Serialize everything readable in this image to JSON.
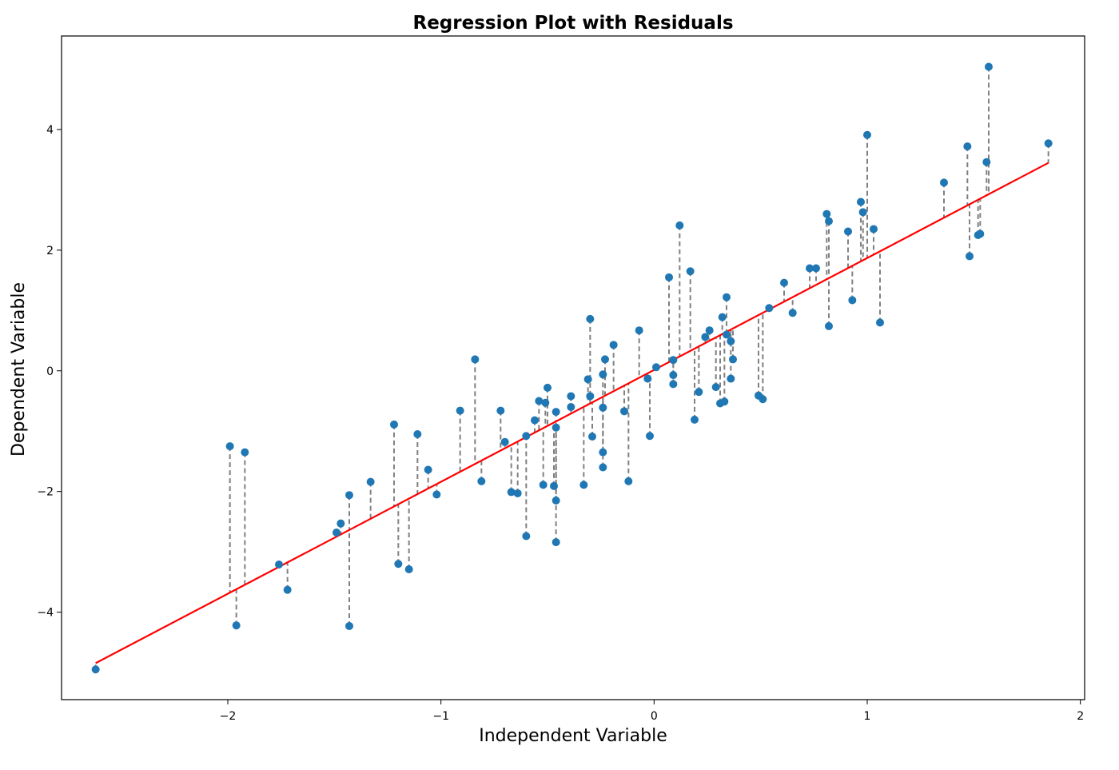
{
  "chart_data": {
    "type": "scatter",
    "title": "Regression Plot with Residuals",
    "xlabel": "Independent Variable",
    "ylabel": "Dependent Variable",
    "xlim": [
      -2.78,
      2.02
    ],
    "ylim": [
      -5.45,
      5.55
    ],
    "xticks": [
      -2,
      -1,
      0,
      1,
      2
    ],
    "yticks": [
      -4,
      -2,
      0,
      2,
      4
    ],
    "tick_labels_x": [
      "−2",
      "−1",
      "0",
      "1",
      "2"
    ],
    "tick_labels_y": [
      "−4",
      "−2",
      "0",
      "2",
      "4"
    ],
    "grid": false,
    "regression_line": {
      "color": "#ff0000",
      "slope": 1.855,
      "intercept": 0.015,
      "x_range": [
        -2.62,
        1.85
      ]
    },
    "residual_style": {
      "color": "#808080",
      "dash": "dashed"
    },
    "point_color": "#1f77b4",
    "points": [
      {
        "x": -2.62,
        "y": -4.95
      },
      {
        "x": -1.99,
        "y": -1.25
      },
      {
        "x": -1.96,
        "y": -4.22
      },
      {
        "x": -1.92,
        "y": -1.35
      },
      {
        "x": -1.76,
        "y": -3.21
      },
      {
        "x": -1.72,
        "y": -3.63
      },
      {
        "x": -1.49,
        "y": -2.68
      },
      {
        "x": -1.47,
        "y": -2.53
      },
      {
        "x": -1.43,
        "y": -2.06
      },
      {
        "x": -1.43,
        "y": -4.23
      },
      {
        "x": -1.33,
        "y": -1.84
      },
      {
        "x": -1.22,
        "y": -0.89
      },
      {
        "x": -1.2,
        "y": -3.2
      },
      {
        "x": -1.15,
        "y": -3.29
      },
      {
        "x": -1.11,
        "y": -1.05
      },
      {
        "x": -1.06,
        "y": -1.64
      },
      {
        "x": -1.02,
        "y": -2.05
      },
      {
        "x": -0.91,
        "y": -0.66
      },
      {
        "x": -0.84,
        "y": 0.19
      },
      {
        "x": -0.81,
        "y": -1.83
      },
      {
        "x": -0.72,
        "y": -0.66
      },
      {
        "x": -0.7,
        "y": -1.18
      },
      {
        "x": -0.67,
        "y": -2.01
      },
      {
        "x": -0.64,
        "y": -2.03
      },
      {
        "x": -0.6,
        "y": -2.74
      },
      {
        "x": -0.6,
        "y": -1.08
      },
      {
        "x": -0.56,
        "y": -0.82
      },
      {
        "x": -0.54,
        "y": -0.5
      },
      {
        "x": -0.52,
        "y": -1.89
      },
      {
        "x": -0.51,
        "y": -0.53
      },
      {
        "x": -0.5,
        "y": -0.28
      },
      {
        "x": -0.47,
        "y": -1.91
      },
      {
        "x": -0.46,
        "y": -0.68
      },
      {
        "x": -0.46,
        "y": -0.94
      },
      {
        "x": -0.46,
        "y": -2.15
      },
      {
        "x": -0.46,
        "y": -2.84
      },
      {
        "x": -0.39,
        "y": -0.42
      },
      {
        "x": -0.39,
        "y": -0.6
      },
      {
        "x": -0.33,
        "y": -1.89
      },
      {
        "x": -0.31,
        "y": -0.14
      },
      {
        "x": -0.3,
        "y": -0.42
      },
      {
        "x": -0.3,
        "y": 0.86
      },
      {
        "x": -0.29,
        "y": -1.09
      },
      {
        "x": -0.24,
        "y": -0.06
      },
      {
        "x": -0.24,
        "y": -0.61
      },
      {
        "x": -0.24,
        "y": -1.35
      },
      {
        "x": -0.24,
        "y": -1.6
      },
      {
        "x": -0.23,
        "y": 0.19
      },
      {
        "x": -0.19,
        "y": 0.43
      },
      {
        "x": -0.14,
        "y": -0.67
      },
      {
        "x": -0.12,
        "y": -1.83
      },
      {
        "x": -0.07,
        "y": 0.67
      },
      {
        "x": -0.03,
        "y": -0.13
      },
      {
        "x": -0.02,
        "y": -1.08
      },
      {
        "x": 0.01,
        "y": 0.06
      },
      {
        "x": 0.07,
        "y": 1.55
      },
      {
        "x": 0.09,
        "y": 0.18
      },
      {
        "x": 0.09,
        "y": -0.07
      },
      {
        "x": 0.09,
        "y": -0.22
      },
      {
        "x": 0.12,
        "y": 2.41
      },
      {
        "x": 0.17,
        "y": 1.65
      },
      {
        "x": 0.19,
        "y": -0.81
      },
      {
        "x": 0.21,
        "y": -0.35
      },
      {
        "x": 0.24,
        "y": 0.56
      },
      {
        "x": 0.26,
        "y": 0.67
      },
      {
        "x": 0.29,
        "y": -0.27
      },
      {
        "x": 0.31,
        "y": -0.54
      },
      {
        "x": 0.32,
        "y": 0.89
      },
      {
        "x": 0.33,
        "y": -0.51
      },
      {
        "x": 0.34,
        "y": 1.22
      },
      {
        "x": 0.34,
        "y": 0.6
      },
      {
        "x": 0.36,
        "y": 0.49
      },
      {
        "x": 0.36,
        "y": -0.13
      },
      {
        "x": 0.37,
        "y": 0.19
      },
      {
        "x": 0.49,
        "y": -0.41
      },
      {
        "x": 0.51,
        "y": -0.47
      },
      {
        "x": 0.54,
        "y": 1.04
      },
      {
        "x": 0.61,
        "y": 1.46
      },
      {
        "x": 0.65,
        "y": 0.96
      },
      {
        "x": 0.73,
        "y": 1.7
      },
      {
        "x": 0.76,
        "y": 1.7
      },
      {
        "x": 0.81,
        "y": 2.6
      },
      {
        "x": 0.82,
        "y": 2.48
      },
      {
        "x": 0.82,
        "y": 0.74
      },
      {
        "x": 0.91,
        "y": 2.31
      },
      {
        "x": 0.93,
        "y": 1.17
      },
      {
        "x": 0.97,
        "y": 2.8
      },
      {
        "x": 0.98,
        "y": 2.63
      },
      {
        "x": 1.0,
        "y": 3.91
      },
      {
        "x": 1.03,
        "y": 2.35
      },
      {
        "x": 1.06,
        "y": 0.8
      },
      {
        "x": 1.36,
        "y": 3.12
      },
      {
        "x": 1.47,
        "y": 3.72
      },
      {
        "x": 1.48,
        "y": 1.9
      },
      {
        "x": 1.52,
        "y": 2.25
      },
      {
        "x": 1.53,
        "y": 2.27
      },
      {
        "x": 1.56,
        "y": 3.46
      },
      {
        "x": 1.57,
        "y": 5.04
      },
      {
        "x": 1.85,
        "y": 3.77
      }
    ]
  }
}
